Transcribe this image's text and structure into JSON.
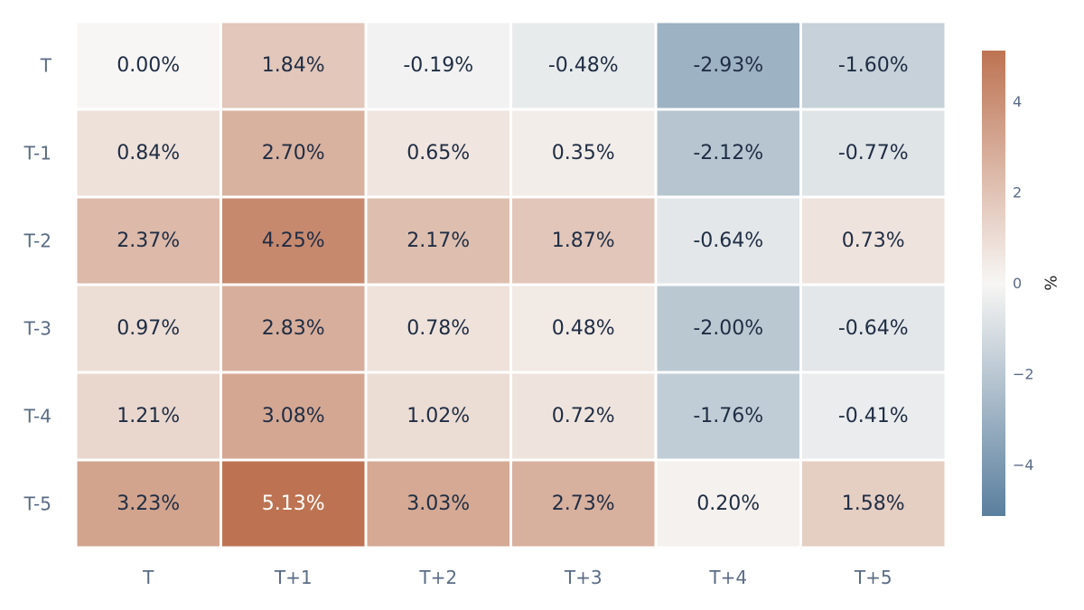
{
  "chart_data": {
    "type": "heatmap",
    "title": "",
    "xlabel": "",
    "ylabel": "",
    "x_categories": [
      "T",
      "T+1",
      "T+2",
      "T+3",
      "T+4",
      "T+5"
    ],
    "y_categories": [
      "T",
      "T-1",
      "T-2",
      "T-3",
      "T-4",
      "T-5"
    ],
    "values": [
      [
        0.0,
        1.84,
        -0.19,
        -0.48,
        -2.93,
        -1.6
      ],
      [
        0.84,
        2.7,
        0.65,
        0.35,
        -2.12,
        -0.77
      ],
      [
        2.37,
        4.25,
        2.17,
        1.87,
        -0.64,
        0.73
      ],
      [
        0.97,
        2.83,
        0.78,
        0.48,
        -2.0,
        -0.64
      ],
      [
        1.21,
        3.08,
        1.02,
        0.72,
        -1.76,
        -0.41
      ],
      [
        3.23,
        5.13,
        3.03,
        2.73,
        0.2,
        1.58
      ]
    ],
    "cell_labels": [
      [
        "0.00%",
        "1.84%",
        "-0.19%",
        "-0.48%",
        "-2.93%",
        "-1.60%"
      ],
      [
        "0.84%",
        "2.70%",
        "0.65%",
        "0.35%",
        "-2.12%",
        "-0.77%"
      ],
      [
        "2.37%",
        "4.25%",
        "2.17%",
        "1.87%",
        "-0.64%",
        "0.73%"
      ],
      [
        "0.97%",
        "2.83%",
        "0.78%",
        "0.48%",
        "-2.00%",
        "-0.64%"
      ],
      [
        "1.21%",
        "3.08%",
        "1.02%",
        "0.72%",
        "-1.76%",
        "-0.41%"
      ],
      [
        "3.23%",
        "5.13%",
        "3.03%",
        "2.73%",
        "0.20%",
        "1.58%"
      ]
    ],
    "colorbar": {
      "title": "%",
      "range": [
        -5.13,
        5.13
      ],
      "ticks": [
        4,
        2,
        0,
        -2,
        -4
      ],
      "tick_labels": [
        "4",
        "2",
        "0",
        "−2",
        "−4"
      ],
      "colors": {
        "negative": "#5a7f9e",
        "zero": "#f7f6f4",
        "positive": "#bd7352"
      }
    },
    "legend": "colorbar-right",
    "grid": false
  }
}
